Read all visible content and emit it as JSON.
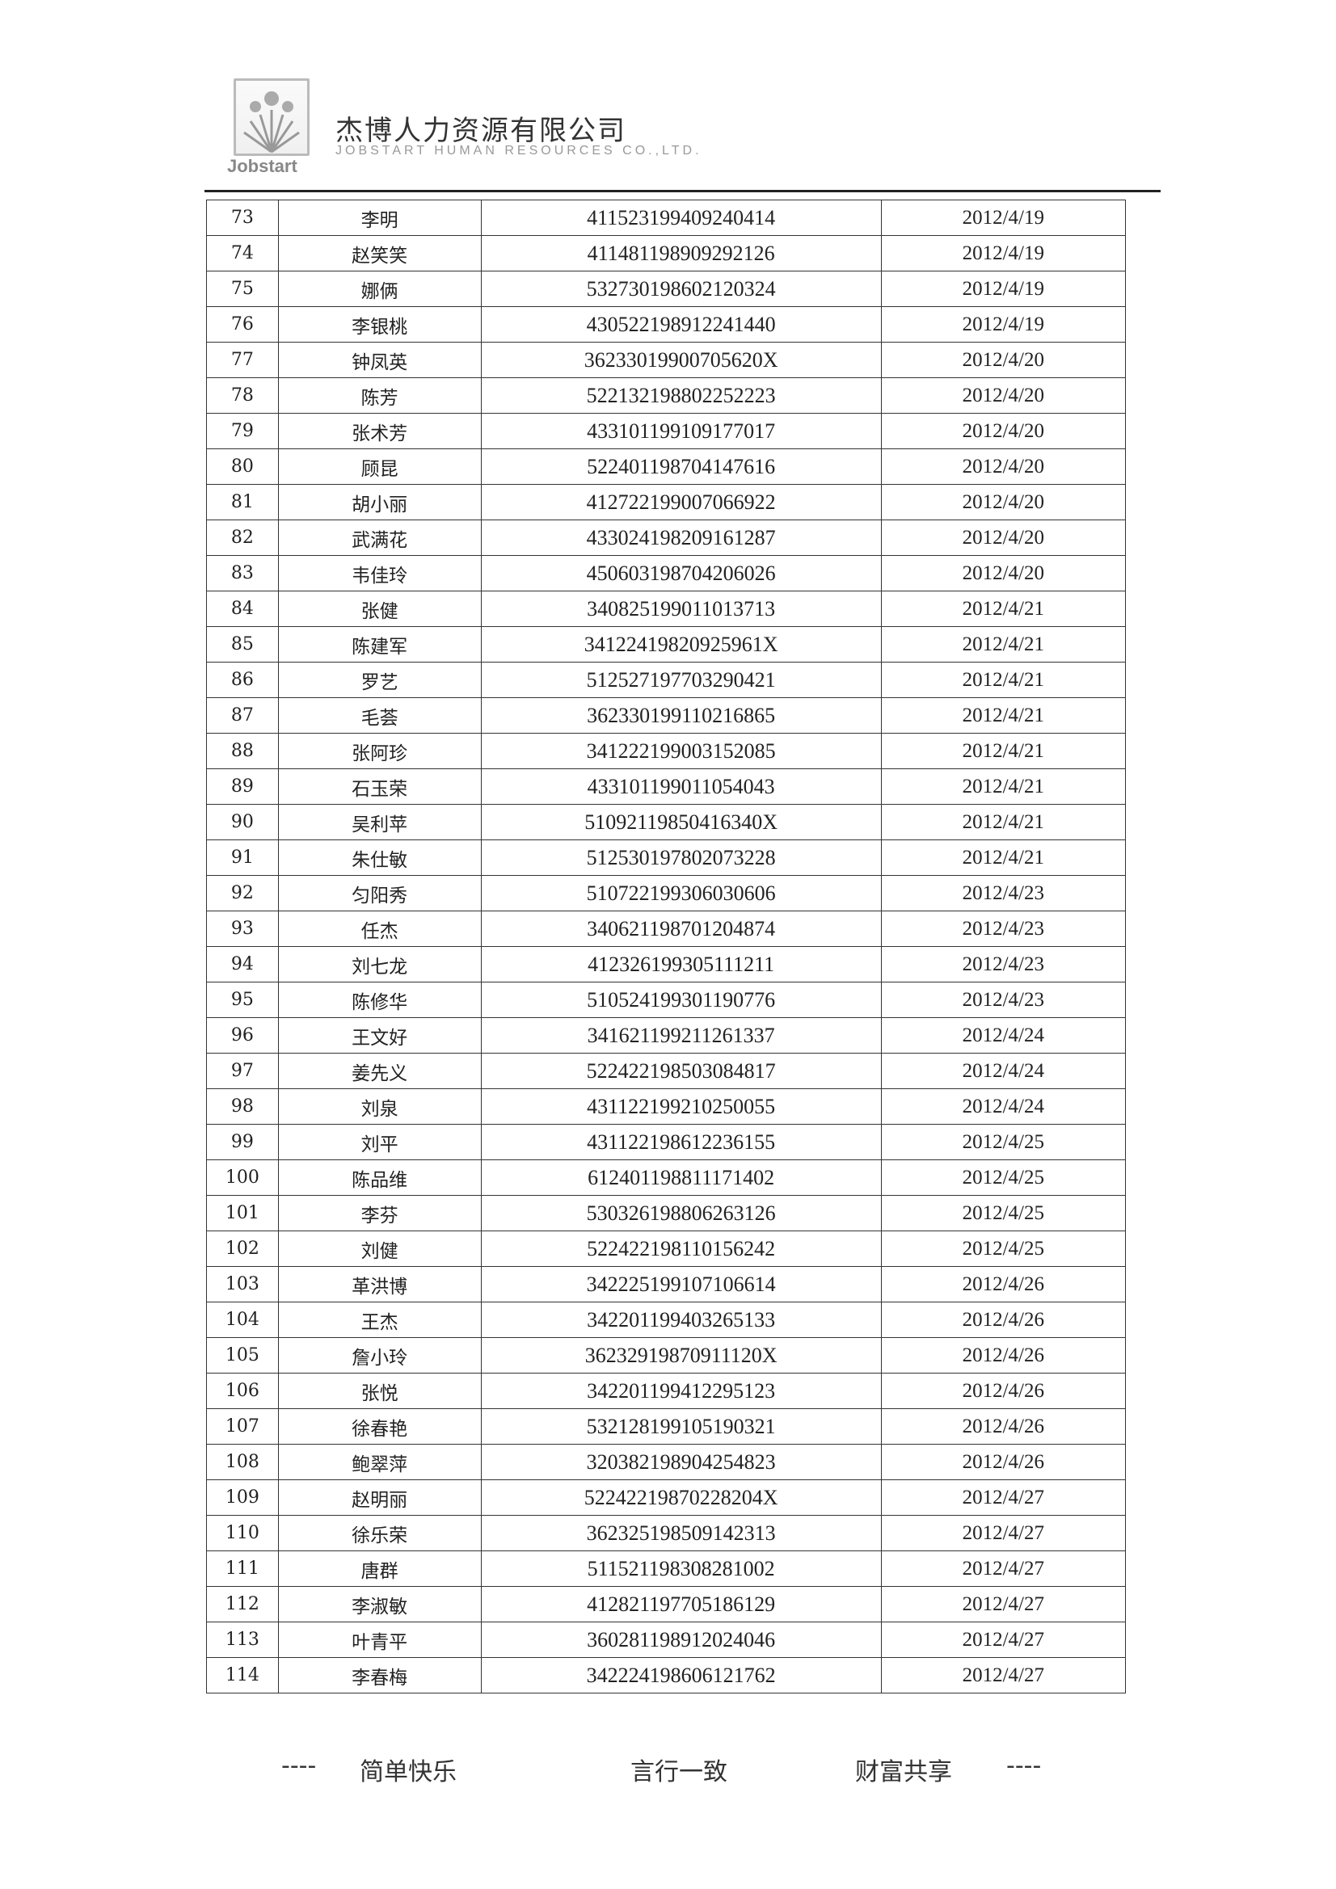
{
  "header": {
    "logo_text": "Jobstart",
    "company_cn": "杰博人力资源有限公司",
    "company_en": "JOBSTART HUMAN RESOURCES CO.,LTD."
  },
  "rows": [
    {
      "no": "73",
      "name": "李明",
      "id": "411523199409240414",
      "date": "2012/4/19"
    },
    {
      "no": "74",
      "name": "赵笑笑",
      "id": "411481198909292126",
      "date": "2012/4/19"
    },
    {
      "no": "75",
      "name": "娜俩",
      "id": "532730198602120324",
      "date": "2012/4/19"
    },
    {
      "no": "76",
      "name": "李银桃",
      "id": "430522198912241440",
      "date": "2012/4/19"
    },
    {
      "no": "77",
      "name": "钟凤英",
      "id": "36233019900705620X",
      "date": "2012/4/20"
    },
    {
      "no": "78",
      "name": "陈芳",
      "id": "522132198802252223",
      "date": "2012/4/20"
    },
    {
      "no": "79",
      "name": "张术芳",
      "id": "433101199109177017",
      "date": "2012/4/20"
    },
    {
      "no": "80",
      "name": "顾昆",
      "id": "522401198704147616",
      "date": "2012/4/20"
    },
    {
      "no": "81",
      "name": "胡小丽",
      "id": "412722199007066922",
      "date": "2012/4/20"
    },
    {
      "no": "82",
      "name": "武满花",
      "id": "433024198209161287",
      "date": "2012/4/20"
    },
    {
      "no": "83",
      "name": "韦佳玲",
      "id": "450603198704206026",
      "date": "2012/4/20"
    },
    {
      "no": "84",
      "name": "张健",
      "id": "340825199011013713",
      "date": "2012/4/21"
    },
    {
      "no": "85",
      "name": "陈建军",
      "id": "34122419820925961X",
      "date": "2012/4/21"
    },
    {
      "no": "86",
      "name": "罗艺",
      "id": "512527197703290421",
      "date": "2012/4/21"
    },
    {
      "no": "87",
      "name": "毛荟",
      "id": "362330199110216865",
      "date": "2012/4/21"
    },
    {
      "no": "88",
      "name": "张阿珍",
      "id": "341222199003152085",
      "date": "2012/4/21"
    },
    {
      "no": "89",
      "name": "石玉荣",
      "id": "433101199011054043",
      "date": "2012/4/21"
    },
    {
      "no": "90",
      "name": "吴利苹",
      "id": "51092119850416340X",
      "date": "2012/4/21"
    },
    {
      "no": "91",
      "name": "朱仕敏",
      "id": "512530197802073228",
      "date": "2012/4/21"
    },
    {
      "no": "92",
      "name": "匀阳秀",
      "id": "510722199306030606",
      "date": "2012/4/23"
    },
    {
      "no": "93",
      "name": "任杰",
      "id": "340621198701204874",
      "date": "2012/4/23"
    },
    {
      "no": "94",
      "name": "刘七龙",
      "id": "412326199305111211",
      "date": "2012/4/23"
    },
    {
      "no": "95",
      "name": "陈修华",
      "id": "510524199301190776",
      "date": "2012/4/23"
    },
    {
      "no": "96",
      "name": "王文好",
      "id": "341621199211261337",
      "date": "2012/4/24"
    },
    {
      "no": "97",
      "name": "姜先义",
      "id": "522422198503084817",
      "date": "2012/4/24"
    },
    {
      "no": "98",
      "name": "刘泉",
      "id": "431122199210250055",
      "date": "2012/4/24"
    },
    {
      "no": "99",
      "name": "刘平",
      "id": "431122198612236155",
      "date": "2012/4/25"
    },
    {
      "no": "100",
      "name": "陈品维",
      "id": "612401198811171402",
      "date": "2012/4/25"
    },
    {
      "no": "101",
      "name": "李芬",
      "id": "530326198806263126",
      "date": "2012/4/25"
    },
    {
      "no": "102",
      "name": "刘健",
      "id": "522422198110156242",
      "date": "2012/4/25"
    },
    {
      "no": "103",
      "name": "革洪博",
      "id": "342225199107106614",
      "date": "2012/4/26"
    },
    {
      "no": "104",
      "name": "王杰",
      "id": "342201199403265133",
      "date": "2012/4/26"
    },
    {
      "no": "105",
      "name": "詹小玲",
      "id": "36232919870911120X",
      "date": "2012/4/26"
    },
    {
      "no": "106",
      "name": "张悦",
      "id": "342201199412295123",
      "date": "2012/4/26"
    },
    {
      "no": "107",
      "name": "徐春艳",
      "id": "532128199105190321",
      "date": "2012/4/26"
    },
    {
      "no": "108",
      "name": "鲍翠萍",
      "id": "320382198904254823",
      "date": "2012/4/26"
    },
    {
      "no": "109",
      "name": "赵明丽",
      "id": "52242219870228204X",
      "date": "2012/4/27"
    },
    {
      "no": "110",
      "name": "徐乐荣",
      "id": "362325198509142313",
      "date": "2012/4/27"
    },
    {
      "no": "111",
      "name": "唐群",
      "id": "511521198308281002",
      "date": "2012/4/27"
    },
    {
      "no": "112",
      "name": "李淑敏",
      "id": "412821197705186129",
      "date": "2012/4/27"
    },
    {
      "no": "113",
      "name": "叶青平",
      "id": "360281198912024046",
      "date": "2012/4/27"
    },
    {
      "no": "114",
      "name": "李春梅",
      "id": "342224198606121762",
      "date": "2012/4/27"
    }
  ],
  "footer": {
    "dash_left": "----",
    "slogan1": "简单快乐",
    "slogan2": "言行一致",
    "slogan3": "财富共享",
    "dash_right": "----"
  }
}
